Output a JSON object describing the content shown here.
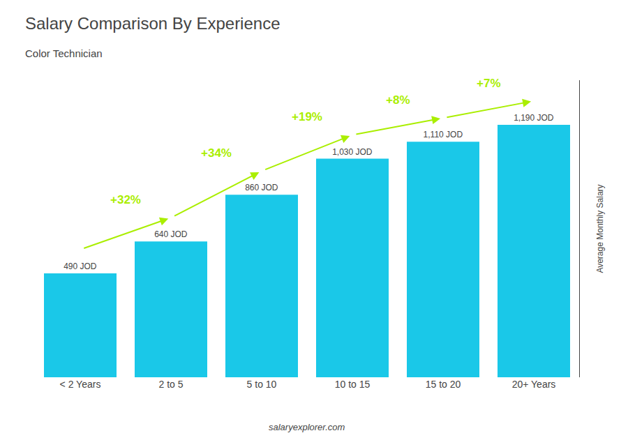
{
  "chart_data": {
    "type": "bar",
    "title": "Salary Comparison By Experience",
    "subtitle": "Color Technician",
    "categories": [
      "< 2 Years",
      "2 to 5",
      "5 to 10",
      "10 to 15",
      "15 to 20",
      "20+ Years"
    ],
    "values": [
      490,
      640,
      860,
      1030,
      1110,
      1190
    ],
    "value_labels": [
      "490 JOD",
      "640 JOD",
      "860 JOD",
      "1,030 JOD",
      "1,110 JOD",
      "1,190 JOD"
    ],
    "data_labels": true,
    "color": "#1ac8e8",
    "ylabel": "Average Monthly Salary",
    "ylim": [
      0,
      1400
    ],
    "tick_labels": "x",
    "grid": false,
    "annotations": [
      {
        "text": "+32%",
        "color": "#aaee00"
      },
      {
        "text": "+34%",
        "color": "#aaee00"
      },
      {
        "text": "+19%",
        "color": "#aaee00"
      },
      {
        "text": "+8%",
        "color": "#aaee00"
      },
      {
        "text": "+7%",
        "color": "#aaee00"
      }
    ],
    "footer": "salaryexplorer.com"
  }
}
